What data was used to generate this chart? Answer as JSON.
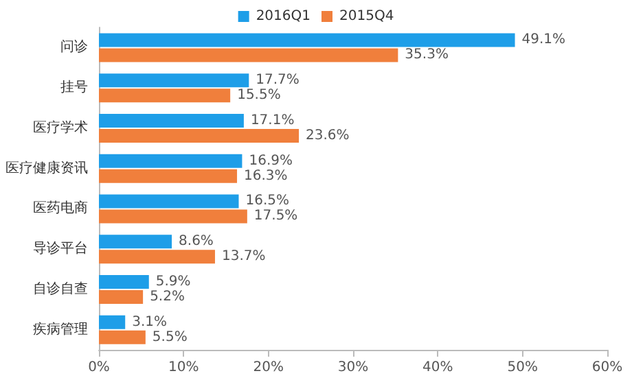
{
  "chart_data": {
    "type": "bar",
    "orientation": "horizontal",
    "categories": [
      "问诊",
      "挂号",
      "医疗学术",
      "医疗健康资讯",
      "医药电商",
      "导诊平台",
      "自诊自查",
      "疾病管理"
    ],
    "series": [
      {
        "name": "2016Q1",
        "color": "#1e9ee8",
        "values": [
          49.1,
          17.7,
          17.1,
          16.9,
          16.5,
          8.6,
          5.9,
          3.1
        ],
        "value_labels": [
          "49.1%",
          "17.7%",
          "17.1%",
          "16.9%",
          "16.5%",
          "8.6%",
          "5.9%",
          "3.1%"
        ]
      },
      {
        "name": "2015Q4",
        "color": "#f07f3c",
        "values": [
          35.3,
          15.5,
          23.6,
          16.3,
          17.5,
          13.7,
          5.2,
          5.5
        ],
        "value_labels": [
          "35.3%",
          "15.5%",
          "23.6%",
          "16.3%",
          "17.5%",
          "13.7%",
          "5.2%",
          "5.5%"
        ]
      }
    ],
    "xlim": [
      0,
      60
    ],
    "xticks": [
      {
        "value": 0,
        "label": "0%"
      },
      {
        "value": 10,
        "label": "10%"
      },
      {
        "value": 20,
        "label": "20%"
      },
      {
        "value": 30,
        "label": "30%"
      },
      {
        "value": 40,
        "label": "40%"
      },
      {
        "value": 50,
        "label": "50%"
      },
      {
        "value": 60,
        "label": "60%"
      }
    ],
    "legend": "top",
    "grid": false
  }
}
